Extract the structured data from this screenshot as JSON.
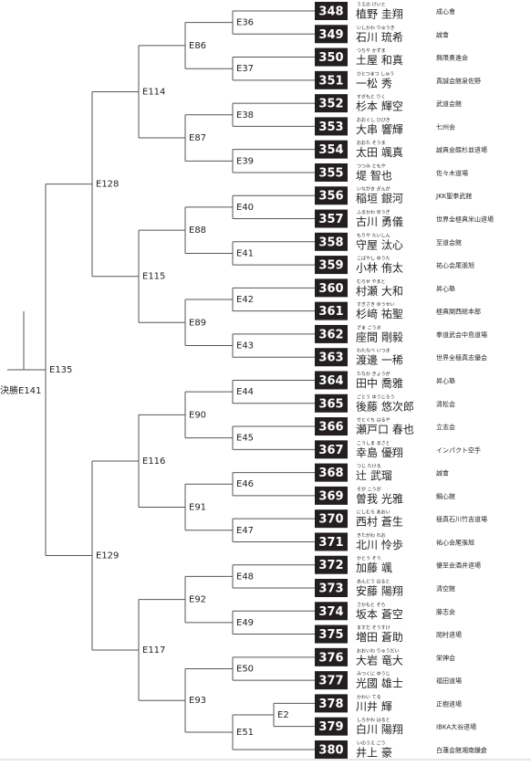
{
  "bracket": {
    "label": "決勝E141",
    "children": [
      {
        "label": "E135",
        "children": [
          {
            "label": "E128",
            "children": [
              {
                "label": "E114",
                "children": [
                  {
                    "label": "E86",
                    "children": [
                      {
                        "label": "E36",
                        "children": [
                          {
                            "number": 348,
                            "kana": "うえの けいと",
                            "name": "植野 圭翔",
                            "dojo": "成心會"
                          },
                          {
                            "number": 349,
                            "kana": "いしかわ りゅうき",
                            "name": "石川 琉希",
                            "dojo": "誠會"
                          }
                        ]
                      },
                      {
                        "label": "E37",
                        "children": [
                          {
                            "number": 350,
                            "kana": "つちや かずま",
                            "name": "土屋 和真",
                            "dojo": "無限勇進会"
                          },
                          {
                            "number": 351,
                            "kana": "ひとつまつ しゅう",
                            "name": "一松 秀",
                            "dojo": "真誠会館泉佐野"
                          }
                        ]
                      }
                    ]
                  },
                  {
                    "label": "E87",
                    "children": [
                      {
                        "label": "E38",
                        "children": [
                          {
                            "number": 352,
                            "kana": "すぎもと りく",
                            "name": "杉本 輝空",
                            "dojo": "武道会館"
                          },
                          {
                            "number": 353,
                            "kana": "おおぐし ひびき",
                            "name": "大串 響輝",
                            "dojo": "七州会"
                          }
                        ]
                      },
                      {
                        "label": "E39",
                        "children": [
                          {
                            "number": 354,
                            "kana": "おおた そうま",
                            "name": "太田 颯真",
                            "dojo": "誠真会館杉並道場"
                          },
                          {
                            "number": 355,
                            "kana": "つつみ ともや",
                            "name": "堤 智也",
                            "dojo": "佐々木道場"
                          }
                        ]
                      }
                    ]
                  }
                ]
              },
              {
                "label": "E115",
                "children": [
                  {
                    "label": "E88",
                    "children": [
                      {
                        "label": "E40",
                        "children": [
                          {
                            "number": 356,
                            "kana": "いながき ぎんが",
                            "name": "稲垣 銀河",
                            "dojo": "JKK聖拳武館"
                          },
                          {
                            "number": 357,
                            "kana": "ふるかわ ゆうぎ",
                            "name": "古川 勇儀",
                            "dojo": "世界全極真米山道場"
                          }
                        ]
                      },
                      {
                        "label": "E41",
                        "children": [
                          {
                            "number": 358,
                            "kana": "もりや たいしん",
                            "name": "守屋 汰心",
                            "dojo": "至道会館"
                          },
                          {
                            "number": 359,
                            "kana": "こばやし ゆうた",
                            "name": "小林 侑太",
                            "dojo": "祐心会尾張旭"
                          }
                        ]
                      }
                    ]
                  },
                  {
                    "label": "E89",
                    "children": [
                      {
                        "label": "E42",
                        "children": [
                          {
                            "number": 360,
                            "kana": "むらせ やまと",
                            "name": "村瀬 大和",
                            "dojo": "昇心塾"
                          },
                          {
                            "number": 361,
                            "kana": "すぎさき ゆうせい",
                            "name": "杉﨑 祐聖",
                            "dojo": "極真関西総本部"
                          }
                        ]
                      },
                      {
                        "label": "E43",
                        "children": [
                          {
                            "number": 362,
                            "kana": "ざま ごうき",
                            "name": "座間 剛毅",
                            "dojo": "拳道武会中島道場"
                          },
                          {
                            "number": 363,
                            "kana": "わたなべ いつき",
                            "name": "渡邊 一稀",
                            "dojo": "世界全極真志優会"
                          }
                        ]
                      }
                    ]
                  }
                ]
              }
            ]
          },
          {
            "label": "E129",
            "children": [
              {
                "label": "E116",
                "children": [
                  {
                    "label": "E90",
                    "children": [
                      {
                        "label": "E44",
                        "children": [
                          {
                            "number": 364,
                            "kana": "たなか きょうが",
                            "name": "田中 喬雅",
                            "dojo": "昇心塾"
                          },
                          {
                            "number": 365,
                            "kana": "ごとう ゆうじろう",
                            "name": "後藤 悠次郎",
                            "dojo": "清松会"
                          }
                        ]
                      },
                      {
                        "label": "E45",
                        "children": [
                          {
                            "number": 366,
                            "kana": "せとぐち はるや",
                            "name": "瀬戸口 春也",
                            "dojo": "立志会"
                          },
                          {
                            "number": 367,
                            "kana": "こうしま まさと",
                            "name": "幸島 優翔",
                            "dojo": "インパクト空手"
                          }
                        ]
                      }
                    ]
                  },
                  {
                    "label": "E91",
                    "children": [
                      {
                        "label": "E46",
                        "children": [
                          {
                            "number": 368,
                            "kana": "つじ たける",
                            "name": "辻 武瑠",
                            "dojo": "誠會"
                          },
                          {
                            "number": 369,
                            "kana": "そが こうが",
                            "name": "曽我 光雅",
                            "dojo": "鯛心館"
                          }
                        ]
                      },
                      {
                        "label": "E47",
                        "children": [
                          {
                            "number": 370,
                            "kana": "にしむら あおい",
                            "name": "西村 蒼生",
                            "dojo": "極真石川竹吉道場"
                          },
                          {
                            "number": 371,
                            "kana": "きたがわ れお",
                            "name": "北川 怜歩",
                            "dojo": "祐心会尾張旭"
                          }
                        ]
                      }
                    ]
                  }
                ]
              },
              {
                "label": "E117",
                "children": [
                  {
                    "label": "E92",
                    "children": [
                      {
                        "label": "E48",
                        "children": [
                          {
                            "number": 372,
                            "kana": "かとう そう",
                            "name": "加藤 颯",
                            "dojo": "優至会酒井道場"
                          },
                          {
                            "number": 373,
                            "kana": "あんどう はると",
                            "name": "安藤 陽翔",
                            "dojo": "清空館"
                          }
                        ]
                      },
                      {
                        "label": "E49",
                        "children": [
                          {
                            "number": 374,
                            "kana": "さかもと そら",
                            "name": "坂本 蒼空",
                            "dojo": "藤志会"
                          },
                          {
                            "number": 375,
                            "kana": "ますだ そうすけ",
                            "name": "増田 蒼助",
                            "dojo": "岡村道場"
                          }
                        ]
                      }
                    ]
                  },
                  {
                    "label": "E93",
                    "children": [
                      {
                        "label": "E50",
                        "children": [
                          {
                            "number": 376,
                            "kana": "おおいわ りゅうだい",
                            "name": "大岩 竜大",
                            "dojo": "栄神会"
                          },
                          {
                            "number": 377,
                            "kana": "みつくに ゆうじ",
                            "name": "光國 雄士",
                            "dojo": "福田道場"
                          }
                        ]
                      },
                      {
                        "label": "E51",
                        "children": [
                          {
                            "label": "E2",
                            "children": [
                              {
                                "number": 378,
                                "kana": "かわい てる",
                                "name": "川井 輝",
                                "dojo": "正樹道場"
                              },
                              {
                                "number": 379,
                                "kana": "しらかわ はると",
                                "name": "白川 陽翔",
                                "dojo": "IBKA大谷道場"
                              }
                            ]
                          },
                          {
                            "number": 380,
                            "kana": "いのうえ ごう",
                            "name": "井上 豪",
                            "dojo": "白蓮会館湘南鎌倉"
                          }
                        ]
                      }
                    ]
                  }
                ]
              }
            ]
          }
        ]
      }
    ]
  }
}
